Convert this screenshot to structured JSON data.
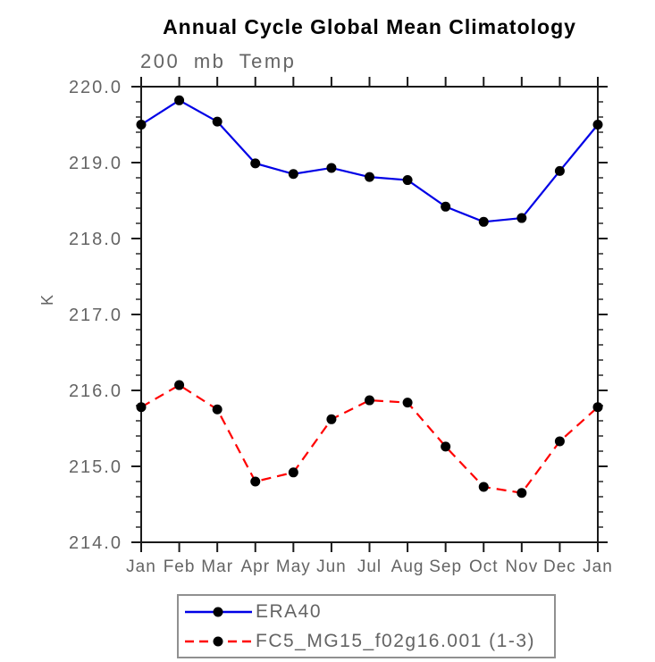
{
  "chart_data": {
    "type": "line",
    "title": "Annual Cycle Global Mean Climatology",
    "subtitle": "200 mb Temp",
    "ylabel": "K",
    "x_categories": [
      "Jan",
      "Feb",
      "Mar",
      "Apr",
      "May",
      "Jun",
      "Jul",
      "Aug",
      "Sep",
      "Oct",
      "Nov",
      "Dec",
      "Jan"
    ],
    "ylim": [
      214.0,
      220.0
    ],
    "ytick_values": [
      220,
      219,
      218,
      217,
      216,
      215,
      214
    ],
    "ytick_labels": [
      "220.0",
      "219.0",
      "218.0",
      "217.0",
      "216.0",
      "215.0",
      "214.0"
    ],
    "ytick_minor_step": 0.2,
    "grid": false,
    "legend_position": "bottom",
    "colors": {
      "axis": "#1a1a1a",
      "tick_label": "#646464",
      "legend_border": "#909090"
    },
    "series": [
      {
        "name": "ERA40",
        "color": "#0000e6",
        "style": "solid",
        "marker": "circle",
        "marker_color": "#000000",
        "values": [
          219.5,
          219.82,
          219.54,
          218.99,
          218.85,
          218.93,
          218.81,
          218.77,
          218.42,
          218.22,
          218.27,
          218.89,
          219.5
        ]
      },
      {
        "name": "FC5_MG15_f02g16.001 (1-3)",
        "color": "#ff0000",
        "style": "dashed",
        "marker": "circle",
        "marker_color": "#000000",
        "values": [
          215.78,
          216.07,
          215.75,
          214.8,
          214.92,
          215.62,
          215.87,
          215.84,
          215.26,
          214.73,
          214.65,
          215.33,
          215.78
        ]
      }
    ]
  }
}
